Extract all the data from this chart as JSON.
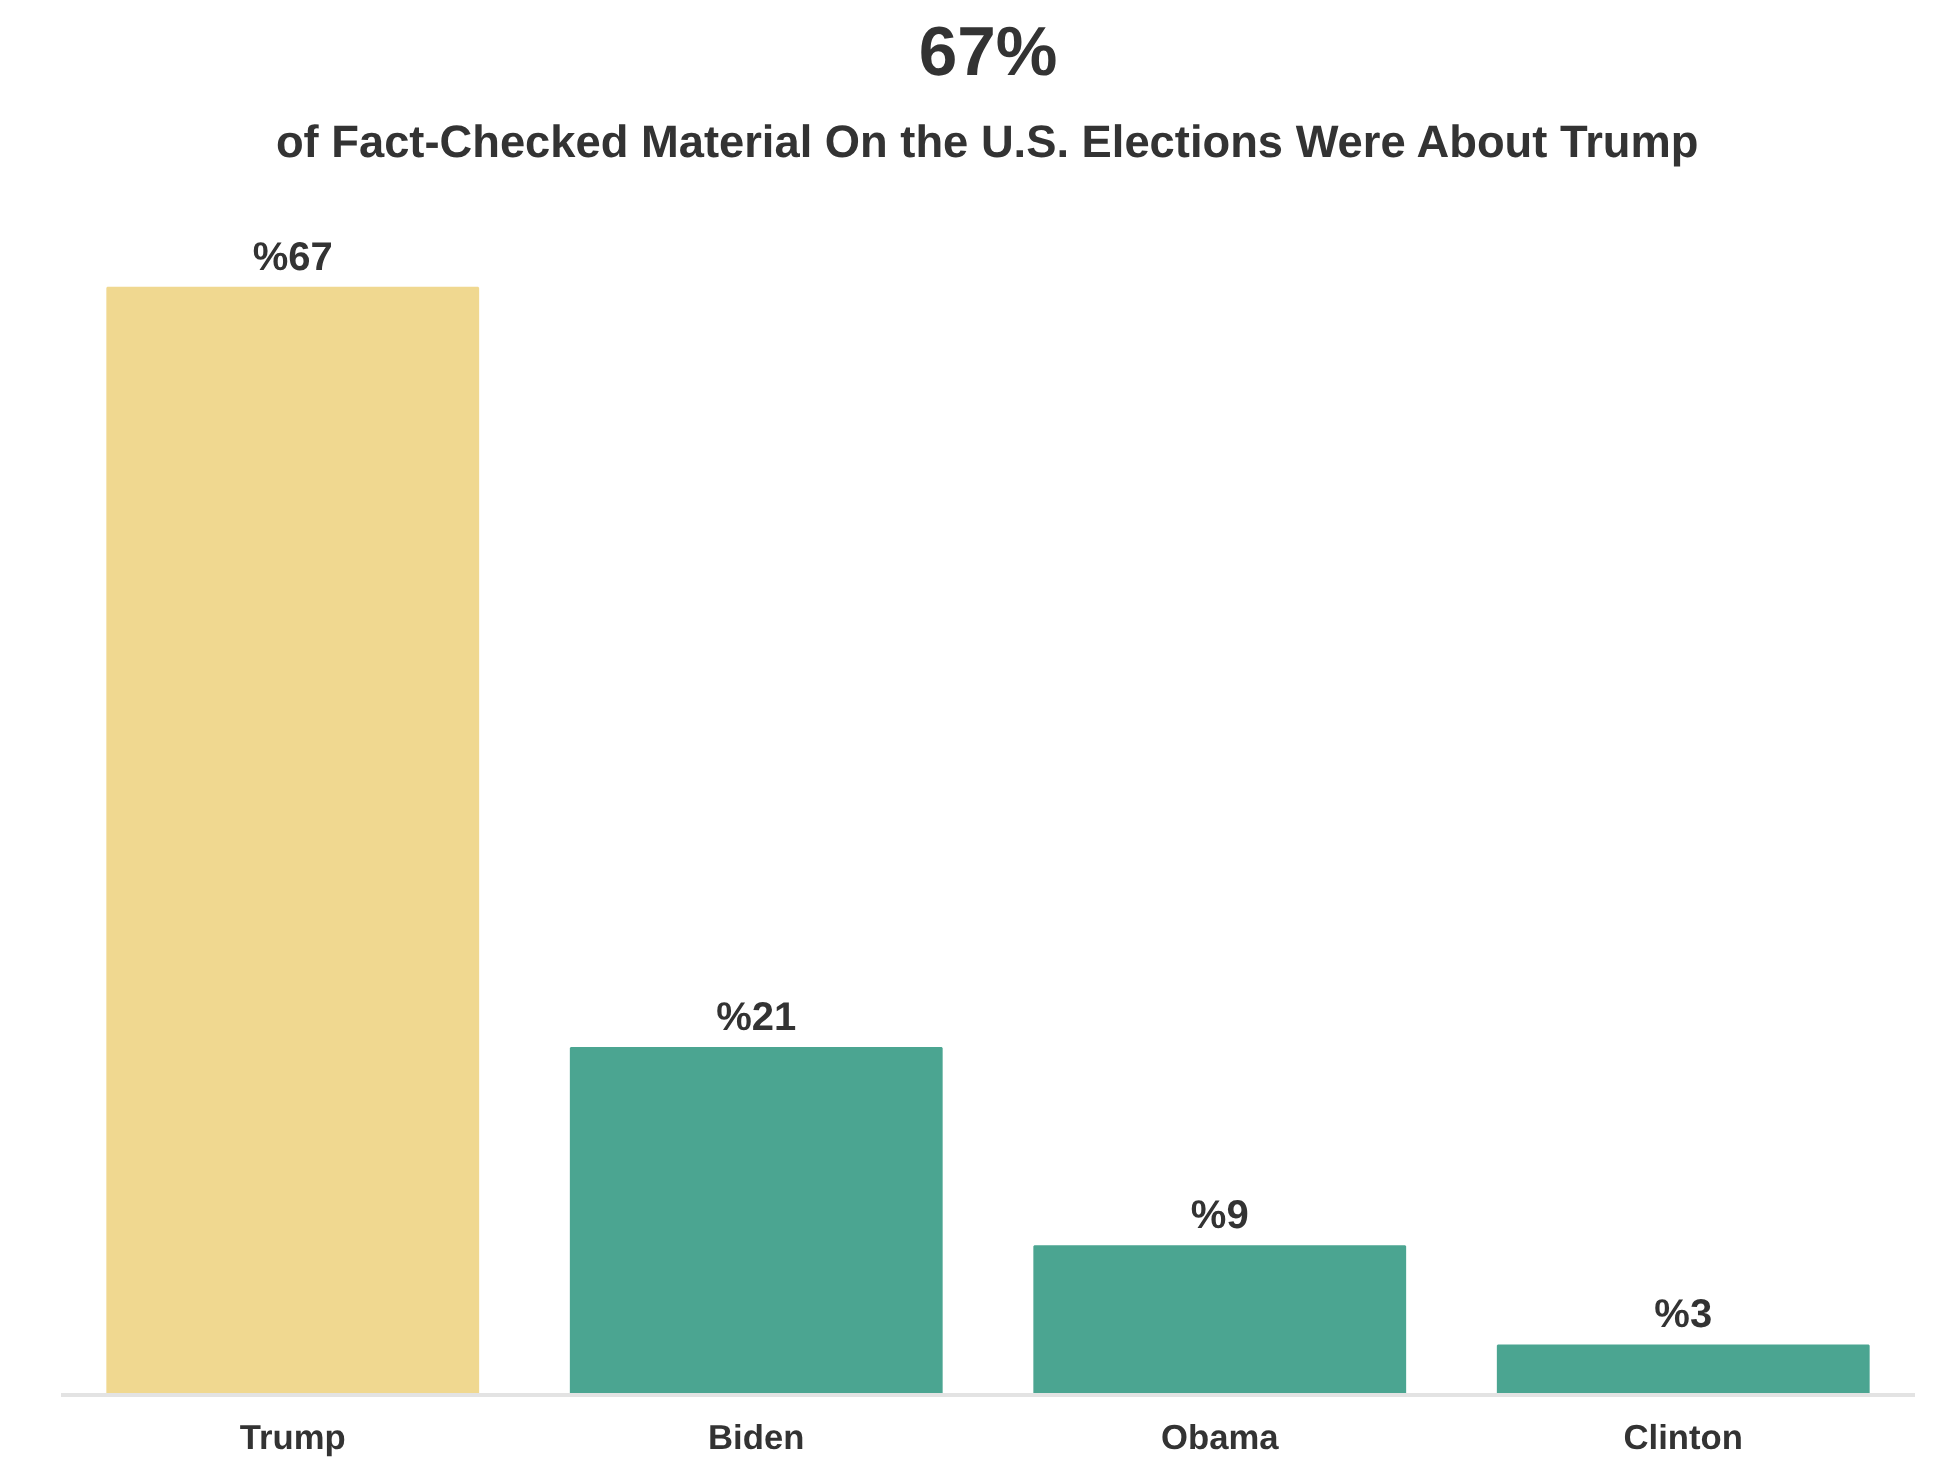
{
  "chart_data": {
    "type": "bar",
    "title": "67%",
    "subtitle": "of Fact-Checked Material On the U.S. Elections Were About Trump",
    "categories": [
      "Trump",
      "Biden",
      "Obama",
      "Clinton"
    ],
    "values": [
      67,
      21,
      9,
      3
    ],
    "colors": [
      "#f0d890",
      "#4ba591",
      "#4ba591",
      "#4ba591"
    ],
    "value_labels": [
      "%67",
      "%21",
      "%9",
      "%3"
    ],
    "grid": false,
    "tick_labels": "x"
  }
}
